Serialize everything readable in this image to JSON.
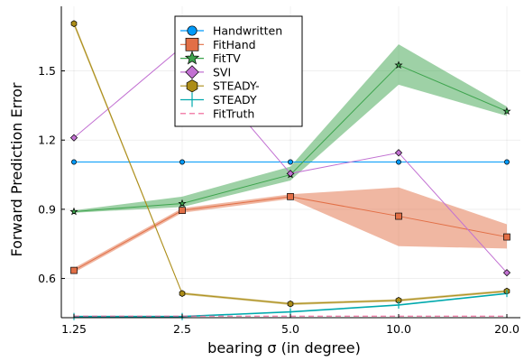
{
  "chart_data": {
    "type": "line",
    "xlabel": "bearing σ (in degree)",
    "ylabel": "Forward Prediction Error",
    "x_scale": "log",
    "x": [
      1.25,
      2.5,
      5.0,
      10.0,
      20.0
    ],
    "x_tick_labels": [
      "1.25",
      "2.5",
      "5.0",
      "10.0",
      "20.0"
    ],
    "ylim": [
      0.43,
      1.78
    ],
    "y_ticks": [
      0.6,
      0.9,
      1.2,
      1.5
    ],
    "y_tick_labels": [
      "0.6",
      "0.9",
      "1.2",
      "1.5"
    ],
    "grid": true,
    "legend_position": "top-center",
    "series": [
      {
        "name": "Handwritten",
        "color": "#009af9",
        "marker": "circle",
        "values": [
          1.105,
          1.105,
          1.105,
          1.105,
          1.105
        ]
      },
      {
        "name": "FitHand",
        "color": "#e26f46",
        "marker": "square",
        "values": [
          0.635,
          0.895,
          0.955,
          0.87,
          0.78
        ],
        "band_lower": [
          0.625,
          0.885,
          0.945,
          0.74,
          0.73
        ],
        "band_upper": [
          0.645,
          0.905,
          0.965,
          0.995,
          0.835
        ]
      },
      {
        "name": "FitTV",
        "color": "#3da44d",
        "marker": "star",
        "values": [
          0.89,
          0.925,
          1.05,
          1.525,
          1.325
        ],
        "band_lower": [
          0.885,
          0.91,
          1.025,
          1.44,
          1.305
        ],
        "band_upper": [
          0.895,
          0.955,
          1.085,
          1.615,
          1.345
        ]
      },
      {
        "name": "SVI",
        "color": "#c271d2",
        "marker": "diamond",
        "values": [
          1.21,
          1.605,
          1.055,
          1.145,
          0.625
        ]
      },
      {
        "name": "STEADY-",
        "color": "#ac8d18",
        "marker": "hexagon",
        "values": [
          1.705,
          0.535,
          0.49,
          0.505,
          0.545
        ],
        "band_lower": [
          1.695,
          0.53,
          0.485,
          0.5,
          0.54
        ],
        "band_upper": [
          1.715,
          0.54,
          0.495,
          0.51,
          0.55
        ]
      },
      {
        "name": "STEADY",
        "color": "#00a9ad",
        "marker": "vline",
        "values": [
          0.435,
          0.435,
          0.455,
          0.485,
          0.535
        ]
      },
      {
        "name": "FitTruth",
        "color": "#ed5d92",
        "marker": "none",
        "dashed": true,
        "values": [
          0.437,
          0.437,
          0.437,
          0.437,
          0.437
        ]
      }
    ]
  }
}
